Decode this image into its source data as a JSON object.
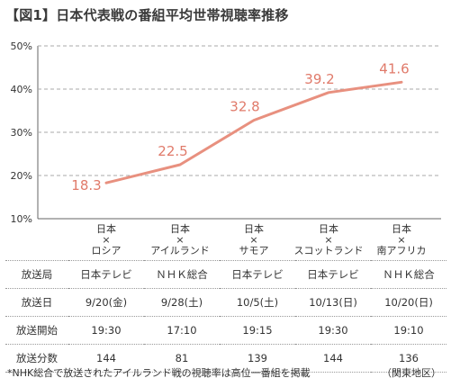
{
  "title": "【図1】日本代表戦の番組平均世帯視聴率推移",
  "chart_data": {
    "type": "line",
    "y_ticks": [
      "50%",
      "40%",
      "30%",
      "20%",
      "10%"
    ],
    "ylim": [
      10,
      50
    ],
    "grid": true,
    "line_color": "#e8907f",
    "categories": [
      [
        "日本",
        "×",
        "ロシア"
      ],
      [
        "日本",
        "×",
        "アイルランド"
      ],
      [
        "日本",
        "×",
        "サモア"
      ],
      [
        "日本",
        "×",
        "スコットランド"
      ],
      [
        "日本",
        "×",
        "南アフリカ"
      ]
    ],
    "values": [
      18.3,
      22.5,
      32.8,
      39.2,
      41.6
    ],
    "value_labels": [
      "18.3",
      "22.5",
      "32.8",
      "39.2",
      "41.6"
    ]
  },
  "table": {
    "rows": [
      {
        "header": "放送局",
        "cells": [
          "日本テレビ",
          "ＮＨＫ総合",
          "日本テレビ",
          "日本テレビ",
          "ＮＨＫ総合"
        ]
      },
      {
        "header": "放送日",
        "cells": [
          "9/20(金)",
          "9/28(土)",
          "10/5(土)",
          "10/13(日)",
          "10/20(日)"
        ]
      },
      {
        "header": "放送開始",
        "cells": [
          "19:30",
          "17:10",
          "19:15",
          "19:30",
          "19:10"
        ]
      },
      {
        "header": "放送分数",
        "cells": [
          "144",
          "81",
          "139",
          "144",
          "136"
        ]
      }
    ]
  },
  "footnote": "*NHK総合で放送されたアイルランド戦の視聴率は高位一番組を掲載",
  "region": "（関東地区）"
}
